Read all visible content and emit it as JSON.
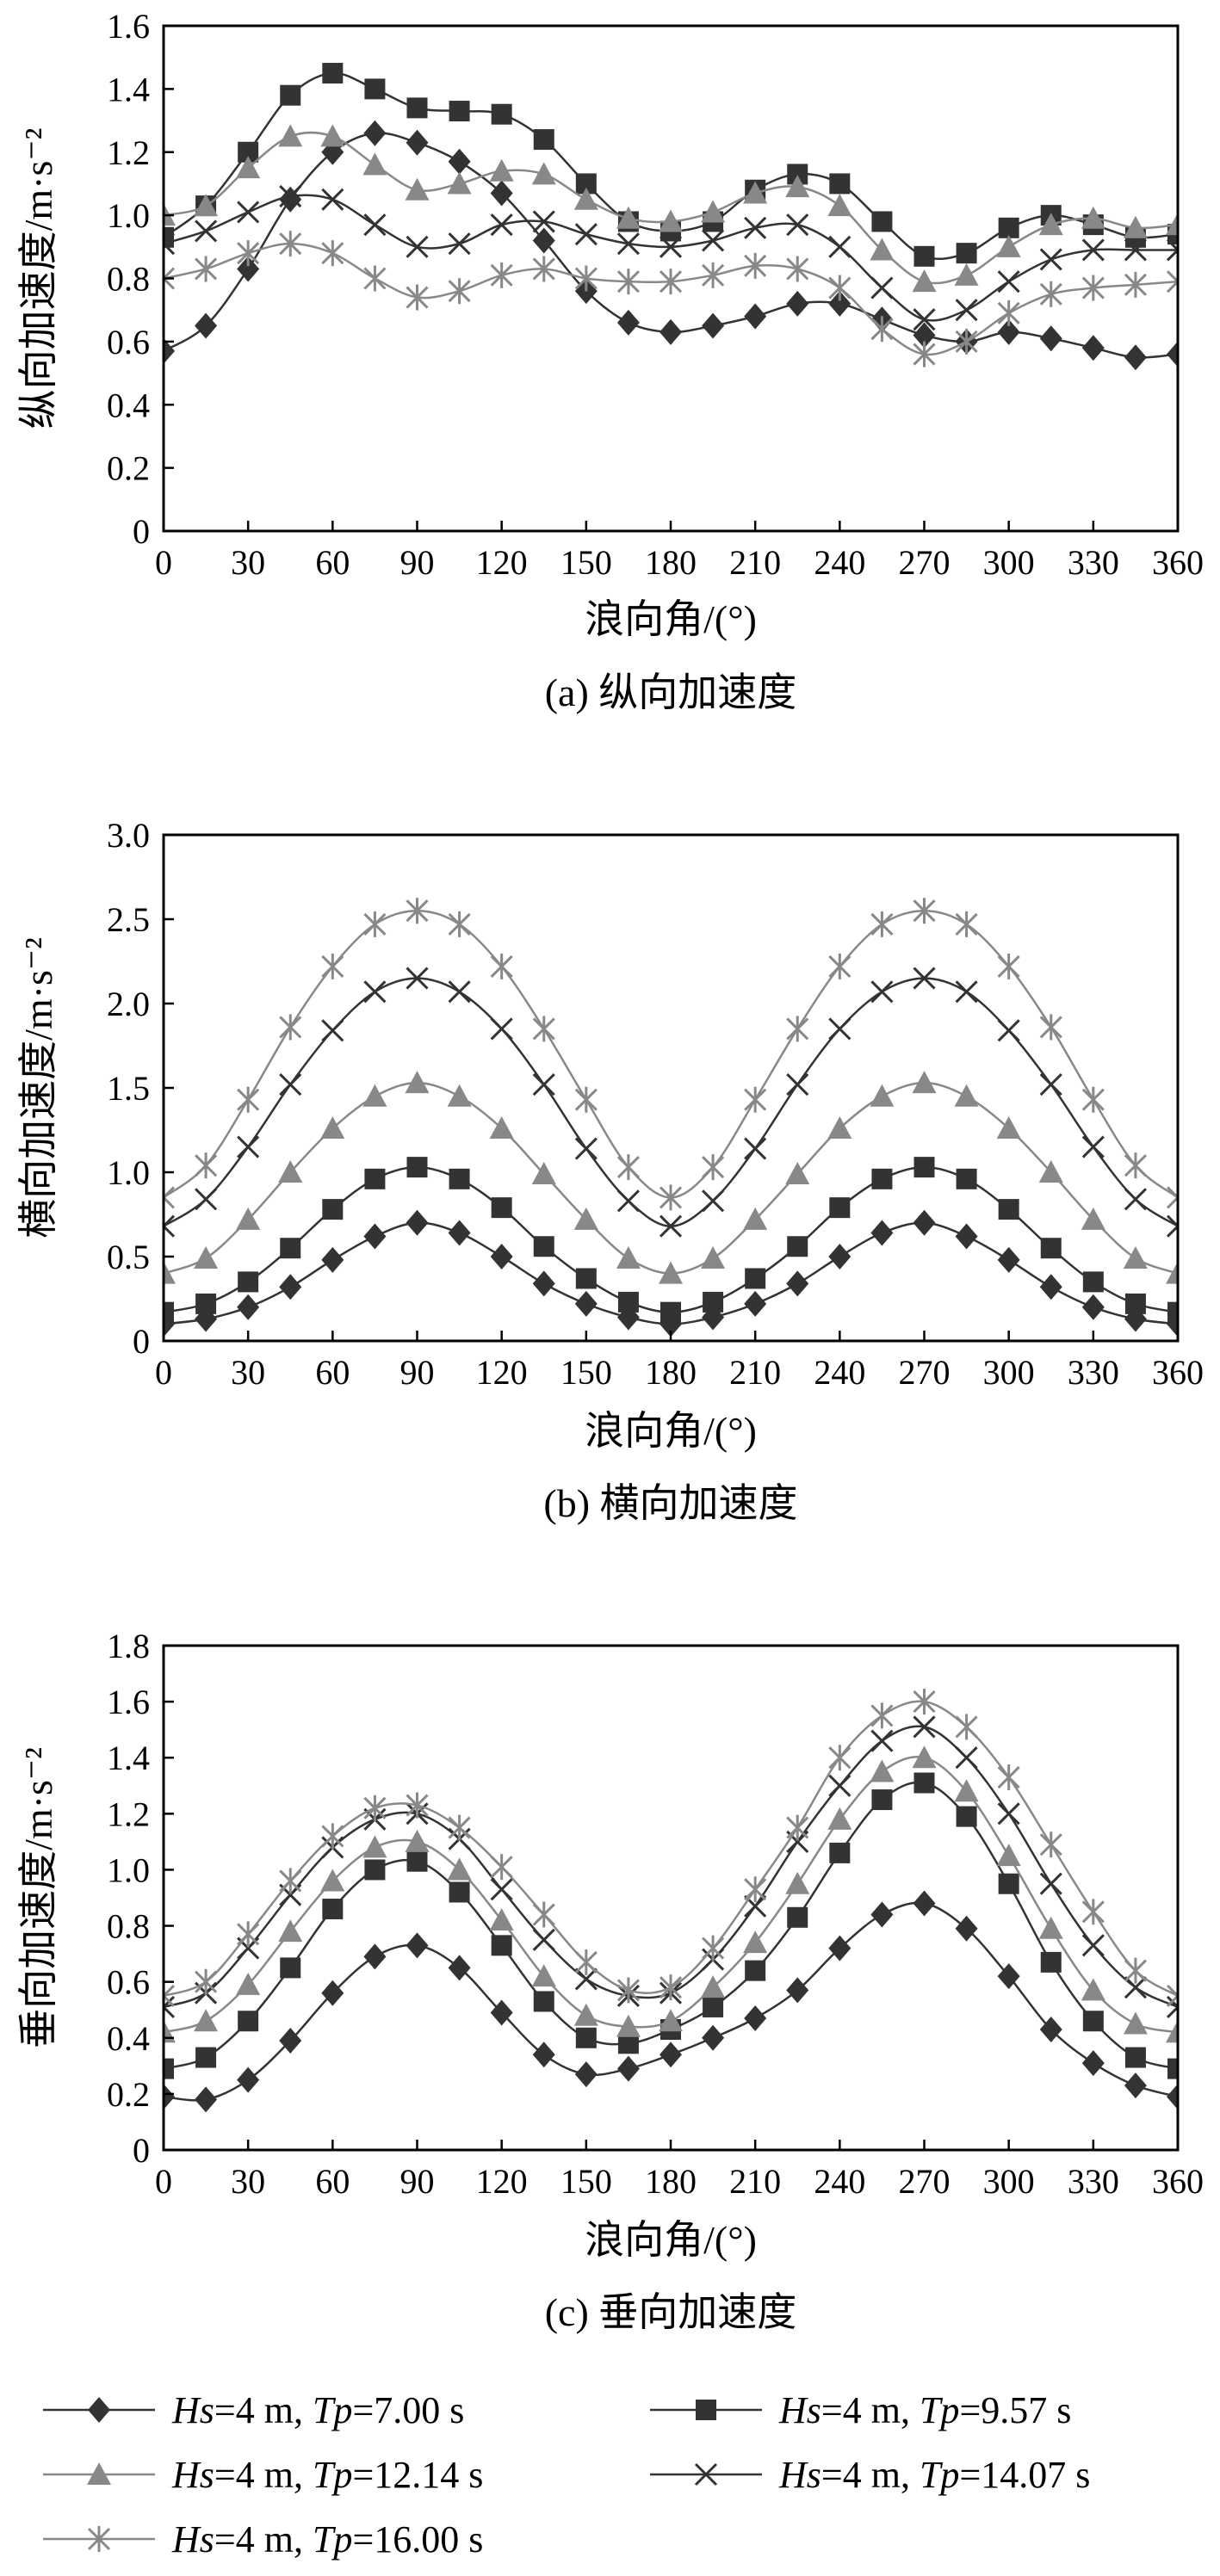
{
  "chart_data": [
    {
      "type": "line",
      "caption": "(a) 纵向加速度",
      "xlabel": "浪向角/(°)",
      "ylabel": "纵向加速度/m·s⁻²",
      "xlim": [
        0,
        360
      ],
      "ylim": [
        0,
        1.6
      ],
      "x_ticks": [
        "0",
        "30",
        "60",
        "90",
        "120",
        "150",
        "180",
        "210",
        "240",
        "270",
        "300",
        "330",
        "360"
      ],
      "y_ticks": [
        "0",
        "0.2",
        "0.4",
        "0.6",
        "0.8",
        "1.0",
        "1.2",
        "1.4",
        "1.6"
      ],
      "x": [
        0,
        15,
        30,
        45,
        60,
        75,
        90,
        105,
        120,
        135,
        150,
        165,
        180,
        195,
        210,
        225,
        240,
        255,
        270,
        285,
        300,
        315,
        330,
        345,
        360
      ],
      "series": [
        {
          "name": "Hs=4 m, Tp=7.00 s",
          "marker": "diamond",
          "color": "#333333",
          "values": [
            0.57,
            0.65,
            0.83,
            1.05,
            1.2,
            1.26,
            1.23,
            1.17,
            1.07,
            0.92,
            0.76,
            0.66,
            0.63,
            0.65,
            0.68,
            0.72,
            0.72,
            0.67,
            0.62,
            0.6,
            0.63,
            0.61,
            0.58,
            0.55,
            0.56
          ]
        },
        {
          "name": "Hs=4 m, Tp=9.57 s",
          "marker": "square",
          "color": "#333333",
          "values": [
            0.93,
            1.03,
            1.2,
            1.38,
            1.45,
            1.4,
            1.34,
            1.33,
            1.32,
            1.24,
            1.1,
            0.98,
            0.95,
            0.98,
            1.08,
            1.13,
            1.1,
            0.98,
            0.87,
            0.88,
            0.96,
            1.0,
            0.97,
            0.93,
            0.94
          ]
        },
        {
          "name": "Hs=4 m, Tp=12.14 s",
          "marker": "triangle",
          "color": "#888888",
          "values": [
            1.0,
            1.03,
            1.15,
            1.25,
            1.25,
            1.16,
            1.08,
            1.1,
            1.14,
            1.13,
            1.05,
            0.99,
            0.98,
            1.01,
            1.07,
            1.09,
            1.03,
            0.89,
            0.79,
            0.81,
            0.9,
            0.97,
            0.99,
            0.96,
            0.97
          ]
        },
        {
          "name": "Hs=4 m, Tp=14.07 s",
          "marker": "x",
          "color": "#333333",
          "values": [
            0.91,
            0.95,
            1.01,
            1.06,
            1.05,
            0.97,
            0.9,
            0.91,
            0.97,
            0.98,
            0.94,
            0.91,
            0.9,
            0.92,
            0.96,
            0.97,
            0.9,
            0.77,
            0.67,
            0.7,
            0.79,
            0.86,
            0.89,
            0.89,
            0.89
          ]
        },
        {
          "name": "Hs=4 m, Tp=16.00 s",
          "marker": "star",
          "color": "#888888",
          "values": [
            0.8,
            0.83,
            0.88,
            0.91,
            0.88,
            0.8,
            0.74,
            0.76,
            0.81,
            0.83,
            0.8,
            0.79,
            0.79,
            0.81,
            0.84,
            0.83,
            0.77,
            0.64,
            0.56,
            0.6,
            0.69,
            0.75,
            0.77,
            0.78,
            0.79
          ]
        }
      ]
    },
    {
      "type": "line",
      "caption": "(b) 横向加速度",
      "xlabel": "浪向角/(°)",
      "ylabel": "横向加速度/m·s⁻²",
      "xlim": [
        0,
        360
      ],
      "ylim": [
        0,
        3.0
      ],
      "x_ticks": [
        "0",
        "30",
        "60",
        "90",
        "120",
        "150",
        "180",
        "210",
        "240",
        "270",
        "300",
        "330",
        "360"
      ],
      "y_ticks": [
        "0",
        "0.5",
        "1.0",
        "1.5",
        "2.0",
        "2.5",
        "3.0"
      ],
      "x": [
        0,
        15,
        30,
        45,
        60,
        75,
        90,
        105,
        120,
        135,
        150,
        165,
        180,
        195,
        210,
        225,
        240,
        255,
        270,
        285,
        300,
        315,
        330,
        345,
        360
      ],
      "series": [
        {
          "name": "Hs=4 m, Tp=7.00 s",
          "marker": "diamond",
          "color": "#333333",
          "values": [
            0.1,
            0.13,
            0.2,
            0.32,
            0.48,
            0.62,
            0.7,
            0.64,
            0.5,
            0.34,
            0.22,
            0.14,
            0.1,
            0.14,
            0.22,
            0.34,
            0.5,
            0.64,
            0.7,
            0.62,
            0.48,
            0.32,
            0.2,
            0.13,
            0.1
          ]
        },
        {
          "name": "Hs=4 m, Tp=9.57 s",
          "marker": "square",
          "color": "#333333",
          "values": [
            0.17,
            0.22,
            0.35,
            0.55,
            0.78,
            0.96,
            1.03,
            0.96,
            0.79,
            0.56,
            0.37,
            0.23,
            0.17,
            0.23,
            0.37,
            0.56,
            0.79,
            0.96,
            1.03,
            0.96,
            0.78,
            0.55,
            0.35,
            0.22,
            0.17
          ]
        },
        {
          "name": "Hs=4 m, Tp=12.14 s",
          "marker": "triangle",
          "color": "#888888",
          "values": [
            0.4,
            0.49,
            0.72,
            1.0,
            1.26,
            1.45,
            1.53,
            1.45,
            1.26,
            0.99,
            0.72,
            0.49,
            0.4,
            0.49,
            0.72,
            0.99,
            1.26,
            1.45,
            1.53,
            1.45,
            1.26,
            1.0,
            0.72,
            0.49,
            0.4
          ]
        },
        {
          "name": "Hs=4 m, Tp=14.07 s",
          "marker": "x",
          "color": "#333333",
          "values": [
            0.68,
            0.84,
            1.15,
            1.52,
            1.84,
            2.07,
            2.15,
            2.07,
            1.85,
            1.52,
            1.14,
            0.83,
            0.68,
            0.83,
            1.14,
            1.52,
            1.85,
            2.07,
            2.15,
            2.07,
            1.84,
            1.52,
            1.15,
            0.84,
            0.68
          ]
        },
        {
          "name": "Hs=4 m, Tp=16.00 s",
          "marker": "star",
          "color": "#888888",
          "values": [
            0.85,
            1.04,
            1.43,
            1.86,
            2.22,
            2.47,
            2.55,
            2.47,
            2.22,
            1.85,
            1.43,
            1.03,
            0.85,
            1.03,
            1.43,
            1.85,
            2.22,
            2.47,
            2.55,
            2.47,
            2.22,
            1.86,
            1.43,
            1.04,
            0.85
          ]
        }
      ]
    },
    {
      "type": "line",
      "caption": "(c) 垂向加速度",
      "xlabel": "浪向角/(°)",
      "ylabel": "垂向加速度/m·s⁻²",
      "xlim": [
        0,
        360
      ],
      "ylim": [
        0,
        1.8
      ],
      "x_ticks": [
        "0",
        "30",
        "60",
        "90",
        "120",
        "150",
        "180",
        "210",
        "240",
        "270",
        "300",
        "330",
        "360"
      ],
      "y_ticks": [
        "0",
        "0.2",
        "0.4",
        "0.6",
        "0.8",
        "1.0",
        "1.2",
        "1.4",
        "1.6",
        "1.8"
      ],
      "x": [
        0,
        15,
        30,
        45,
        60,
        75,
        90,
        105,
        120,
        135,
        150,
        165,
        180,
        195,
        210,
        225,
        240,
        255,
        270,
        285,
        300,
        315,
        330,
        345,
        360
      ],
      "series": [
        {
          "name": "Hs=4 m, Tp=7.00 s",
          "marker": "diamond",
          "color": "#333333",
          "values": [
            0.19,
            0.18,
            0.25,
            0.39,
            0.56,
            0.69,
            0.73,
            0.65,
            0.49,
            0.34,
            0.27,
            0.29,
            0.34,
            0.4,
            0.47,
            0.57,
            0.72,
            0.84,
            0.88,
            0.79,
            0.62,
            0.43,
            0.31,
            0.23,
            0.19
          ]
        },
        {
          "name": "Hs=4 m, Tp=9.57 s",
          "marker": "square",
          "color": "#333333",
          "values": [
            0.29,
            0.33,
            0.46,
            0.65,
            0.86,
            1.0,
            1.03,
            0.92,
            0.73,
            0.53,
            0.4,
            0.38,
            0.43,
            0.51,
            0.64,
            0.83,
            1.06,
            1.25,
            1.31,
            1.19,
            0.95,
            0.67,
            0.46,
            0.33,
            0.29
          ]
        },
        {
          "name": "Hs=4 m, Tp=12.14 s",
          "marker": "triangle",
          "color": "#888888",
          "values": [
            0.42,
            0.46,
            0.59,
            0.78,
            0.96,
            1.08,
            1.1,
            1.0,
            0.82,
            0.62,
            0.48,
            0.44,
            0.46,
            0.58,
            0.74,
            0.95,
            1.18,
            1.35,
            1.4,
            1.28,
            1.05,
            0.79,
            0.57,
            0.45,
            0.42
          ]
        },
        {
          "name": "Hs=4 m, Tp=14.07 s",
          "marker": "x",
          "color": "#333333",
          "values": [
            0.51,
            0.56,
            0.72,
            0.91,
            1.08,
            1.18,
            1.2,
            1.11,
            0.93,
            0.75,
            0.61,
            0.55,
            0.56,
            0.68,
            0.87,
            1.1,
            1.3,
            1.46,
            1.51,
            1.4,
            1.2,
            0.95,
            0.73,
            0.58,
            0.51
          ]
        },
        {
          "name": "Hs=4 m, Tp=16.00 s",
          "marker": "star",
          "color": "#888888",
          "values": [
            0.55,
            0.6,
            0.77,
            0.96,
            1.12,
            1.22,
            1.23,
            1.15,
            1.01,
            0.84,
            0.67,
            0.57,
            0.58,
            0.72,
            0.93,
            1.15,
            1.4,
            1.55,
            1.6,
            1.51,
            1.33,
            1.09,
            0.85,
            0.64,
            0.55
          ]
        }
      ]
    }
  ],
  "legend": {
    "placement": "bottom",
    "entries": [
      {
        "hs": "Hs",
        "mid": "=4 m, ",
        "tp": "Tp",
        "end": "=7.00 s",
        "series_index": 0
      },
      {
        "hs": "Hs",
        "mid": "=4 m, ",
        "tp": "Tp",
        "end": "=9.57 s",
        "series_index": 1
      },
      {
        "hs": "Hs",
        "mid": "=4 m, ",
        "tp": "Tp",
        "end": "=12.14 s",
        "series_index": 2
      },
      {
        "hs": "Hs",
        "mid": "=4 m, ",
        "tp": "Tp",
        "end": "=14.07 s",
        "series_index": 3
      },
      {
        "hs": "Hs",
        "mid": "=4 m, ",
        "tp": "Tp",
        "end": "=16.00 s",
        "series_index": 4
      }
    ]
  }
}
